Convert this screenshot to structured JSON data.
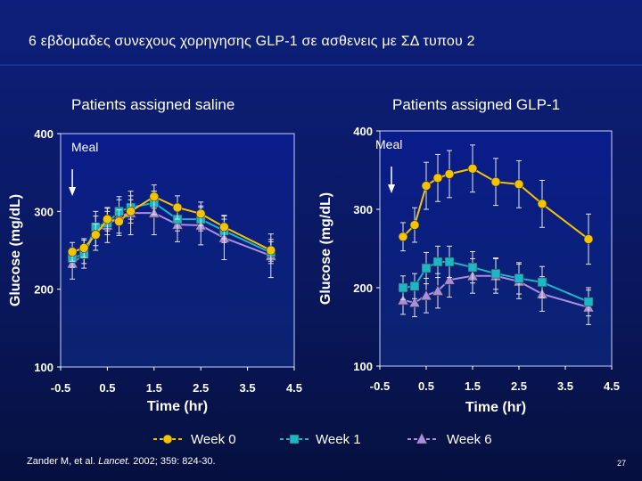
{
  "slide": {
    "title": "6 εβδομαδες συνεχους χορηγησης  GLP-1 σε ασθενεις με ΣΔ τυπου 2",
    "citation_prefix": "Zander M, et al. ",
    "citation_journal": "Lancet.",
    "citation_suffix": " 2002; 359: 824-30.",
    "page_number": "27"
  },
  "colors": {
    "plot_top": "#0a1c8a",
    "plot_bottom": "#0b2370",
    "week0": "#f5c400",
    "week1": "#1fb5c8",
    "week6": "#a98ee0",
    "axis_text": "#ffffff"
  },
  "legend": [
    {
      "label": "Week 0",
      "marker": "circle",
      "color": "#f5c400"
    },
    {
      "label": "Week 1",
      "marker": "square",
      "color": "#1fb5c8"
    },
    {
      "label": "Week 6",
      "marker": "triangle",
      "color": "#a98ee0"
    }
  ],
  "chart_data": [
    {
      "type": "line",
      "title": "Patients assigned saline",
      "xlabel": "Time (hr)",
      "ylabel": "Glucose (mg/dL)",
      "xlim": [
        -0.5,
        4.5
      ],
      "ylim": [
        100,
        400
      ],
      "xticks": [
        "-0.5",
        "0.5",
        "1.5",
        "2.5",
        "3.5",
        "4.5"
      ],
      "yticks": [
        "100",
        "200",
        "300",
        "400"
      ],
      "annotation": {
        "text": "Meal",
        "x": -0.25
      },
      "x": [
        -0.25,
        0,
        0.25,
        0.5,
        0.75,
        1,
        1.5,
        2,
        2.5,
        3,
        4
      ],
      "series": [
        {
          "name": "Week 0",
          "marker": "circle",
          "values": [
            248,
            253,
            270,
            290,
            287,
            300,
            319,
            305,
            297,
            280,
            250
          ],
          "err": [
            12,
            12,
            14,
            15,
            15,
            15,
            15,
            15,
            15,
            15,
            14
          ]
        },
        {
          "name": "Week 1",
          "marker": "square",
          "values": [
            240,
            245,
            280,
            285,
            300,
            305,
            311,
            290,
            290,
            275,
            247
          ],
          "err": [
            12,
            12,
            14,
            15,
            15,
            15,
            15,
            15,
            15,
            15,
            14
          ]
        },
        {
          "name": "Week 6",
          "marker": "triangle",
          "values": [
            233,
            245,
            275,
            282,
            294,
            298,
            298,
            283,
            282,
            266,
            243
          ],
          "err": [
            20,
            18,
            25,
            22,
            25,
            28,
            28,
            22,
            25,
            28,
            28
          ]
        }
      ]
    },
    {
      "type": "line",
      "title": "Patients assigned GLP-1",
      "xlabel": "Time (hr)",
      "ylabel": "Glucose (mg/dL)",
      "xlim": [
        -0.5,
        4.5
      ],
      "ylim": [
        100,
        400
      ],
      "xticks": [
        "-0.5",
        "0.5",
        "1.5",
        "2.5",
        "3.5",
        "4.5"
      ],
      "yticks": [
        "100",
        "200",
        "300",
        "400"
      ],
      "annotation": {
        "text": "Meal",
        "x": -0.25
      },
      "x": [
        0,
        0.25,
        0.5,
        0.75,
        1,
        1.5,
        2,
        2.5,
        3,
        4
      ],
      "series": [
        {
          "name": "Week 0",
          "marker": "circle",
          "values": [
            265,
            280,
            330,
            340,
            345,
            352,
            335,
            332,
            307,
            262
          ],
          "err": [
            18,
            22,
            30,
            30,
            30,
            30,
            30,
            30,
            30,
            32
          ]
        },
        {
          "name": "Week 1",
          "marker": "square",
          "values": [
            200,
            202,
            225,
            233,
            233,
            226,
            218,
            212,
            207,
            182
          ],
          "err": [
            15,
            16,
            20,
            20,
            20,
            20,
            20,
            20,
            20,
            18
          ]
        },
        {
          "name": "Week 6",
          "marker": "triangle",
          "values": [
            184,
            181,
            190,
            196,
            210,
            215,
            215,
            208,
            192,
            175
          ],
          "err": [
            18,
            18,
            22,
            22,
            22,
            22,
            22,
            22,
            22,
            22
          ]
        }
      ]
    }
  ]
}
